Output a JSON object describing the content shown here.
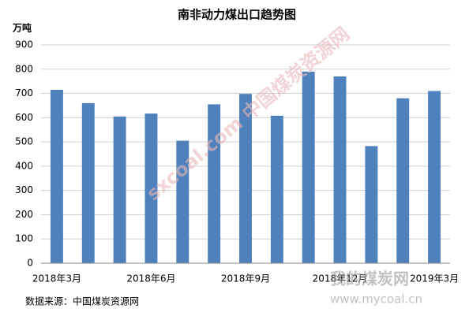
{
  "chart_data": {
    "type": "bar",
    "title": "南非动力煤出口趋势图",
    "y_label": "万吨",
    "source": "数据来源：中国煤炭资源网",
    "watermarks": [
      "sxcoal.com 中国煤炭资源网",
      "我的煤炭网",
      "www.mycoal.cn"
    ],
    "categories": [
      "2018年3月",
      null,
      null,
      "2018年6月",
      null,
      null,
      "2018年9月",
      null,
      null,
      "2018年12月",
      null,
      null,
      "2019年3月"
    ],
    "values": [
      715,
      660,
      605,
      617,
      505,
      655,
      698,
      608,
      790,
      770,
      483,
      680,
      710
    ],
    "color": "#4f81bd",
    "ylim": [
      0,
      900
    ],
    "yticks": [
      0,
      100,
      200,
      300,
      400,
      500,
      600,
      700,
      800,
      900
    ],
    "grid": true
  }
}
